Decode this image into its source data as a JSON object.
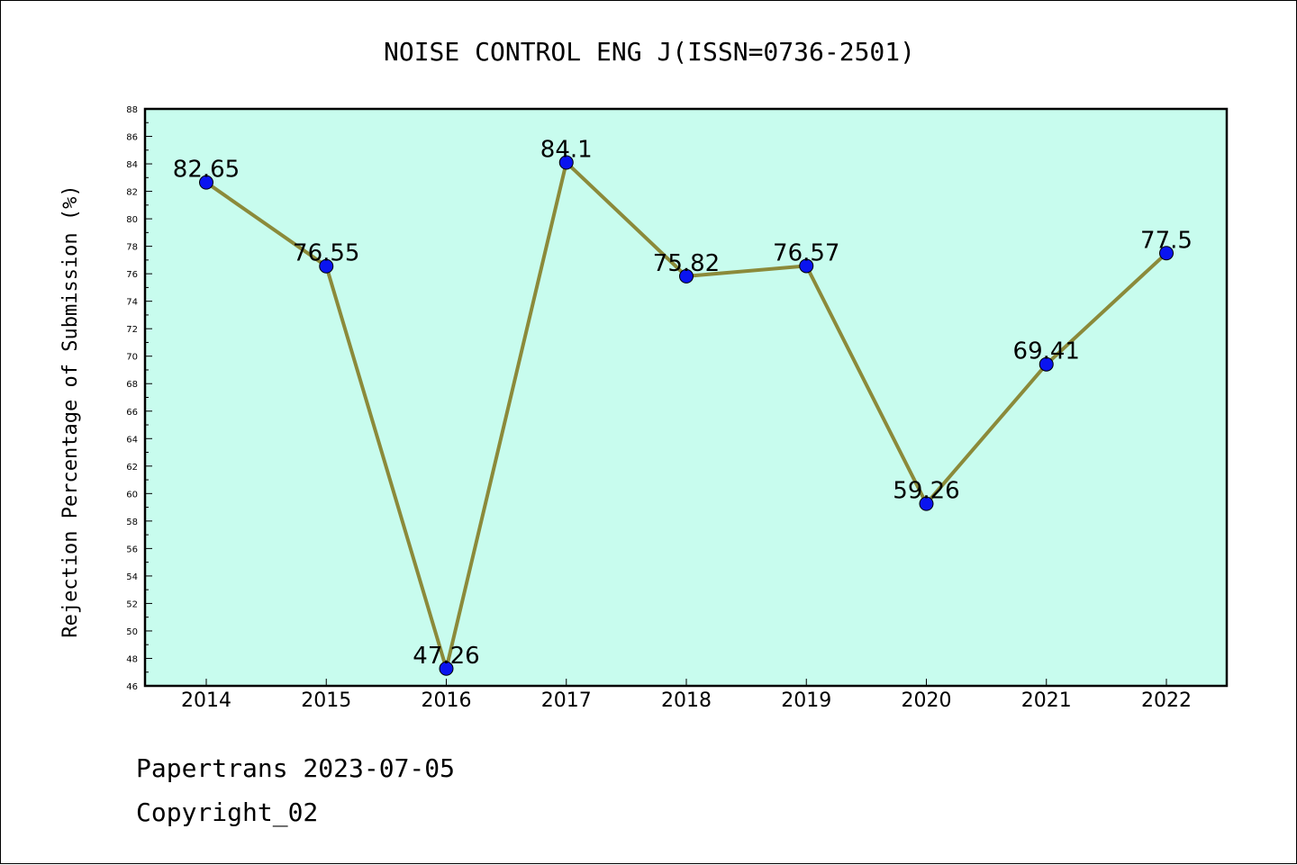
{
  "chart_data": {
    "type": "line",
    "title": "NOISE CONTROL ENG J(ISSN=0736-2501)",
    "xlabel": "",
    "ylabel": "Rejection Percentage of Submission (%)",
    "categories": [
      "2014",
      "2015",
      "2016",
      "2017",
      "2018",
      "2019",
      "2020",
      "2021",
      "2022"
    ],
    "values": [
      82.65,
      76.55,
      47.26,
      84.1,
      75.82,
      76.57,
      59.26,
      69.41,
      77.5
    ],
    "data_labels": [
      "82.65",
      "76.55",
      "47.26",
      "84.1",
      "75.82",
      "76.57",
      "59.26",
      "69.41",
      "77.5"
    ],
    "ylim": [
      46,
      88
    ],
    "yticks": [
      "46",
      "48",
      "50",
      "52",
      "54",
      "56",
      "58",
      "60",
      "62",
      "64",
      "66",
      "68",
      "70",
      "72",
      "74",
      "76",
      "78",
      "80",
      "82",
      "84",
      "86",
      "88"
    ],
    "grid": false,
    "colors": {
      "plot_background": "#c8fcee",
      "line": "#8b8a3a",
      "marker": "#0a14f0",
      "axis": "#000000"
    }
  },
  "footer": {
    "date_text": "Papertrans 2023-07-05",
    "copyright_text": "Copyright_02"
  }
}
